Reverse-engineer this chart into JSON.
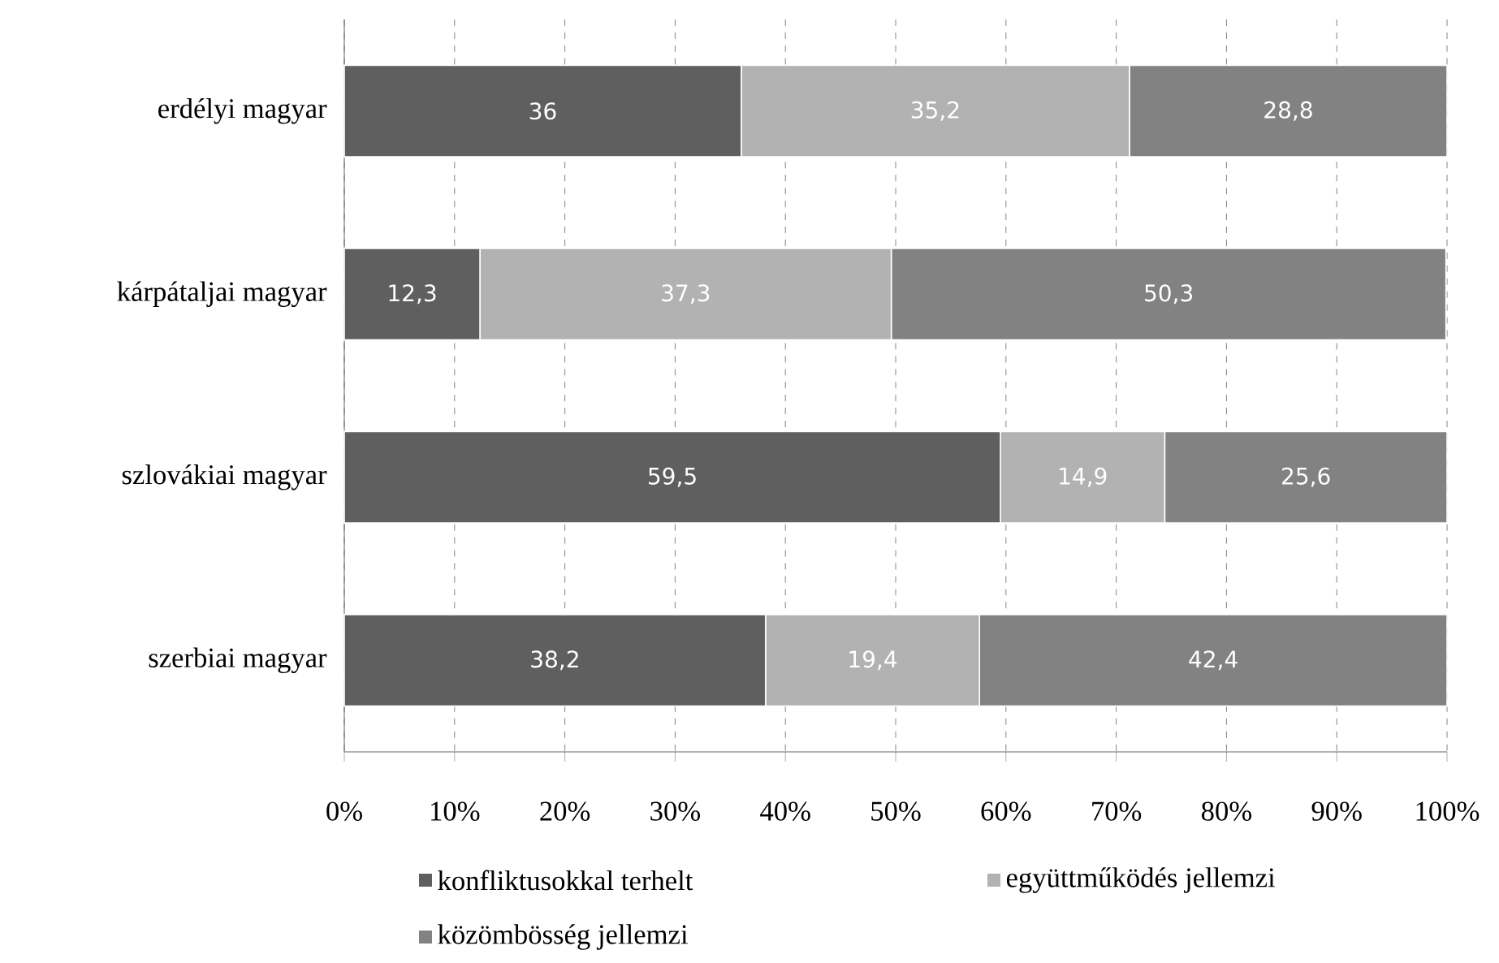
{
  "chart_data": {
    "type": "bar",
    "orientation": "horizontal",
    "stacked": true,
    "categories": [
      "erdélyi magyar",
      "kárpátaljai magyar",
      "szlovákiai magyar",
      "szerbiai magyar"
    ],
    "series": [
      {
        "name": "konfliktusokkal terhelt",
        "color": "#5f5f5f",
        "values": [
          36,
          12.3,
          59.5,
          38.2
        ],
        "value_labels": [
          "36",
          "12,3",
          "59,5",
          "38,2"
        ]
      },
      {
        "name": "együttműködés jellemzi",
        "color": "#b2b2b2",
        "values": [
          35.2,
          37.3,
          14.9,
          19.4
        ],
        "value_labels": [
          "35,2",
          "37,3",
          "14,9",
          "19,4"
        ]
      },
      {
        "name": "közömbösség jellemzi",
        "color": "#828282",
        "values": [
          28.8,
          50.3,
          25.6,
          42.4
        ],
        "value_labels": [
          "28,8",
          "50,3",
          "25,6",
          "42,4"
        ]
      }
    ],
    "xlim": [
      0,
      100
    ],
    "xticks": [
      {
        "value": 0,
        "label": "0%"
      },
      {
        "value": 10,
        "label": "10%"
      },
      {
        "value": 20,
        "label": "20%"
      },
      {
        "value": 30,
        "label": "30%"
      },
      {
        "value": 40,
        "label": "40%"
      },
      {
        "value": 50,
        "label": "50%"
      },
      {
        "value": 60,
        "label": "60%"
      },
      {
        "value": 70,
        "label": "70%"
      },
      {
        "value": 80,
        "label": "80%"
      },
      {
        "value": 90,
        "label": "90%"
      },
      {
        "value": 100,
        "label": "100%"
      }
    ],
    "grid": "x",
    "legend": "bottom"
  }
}
